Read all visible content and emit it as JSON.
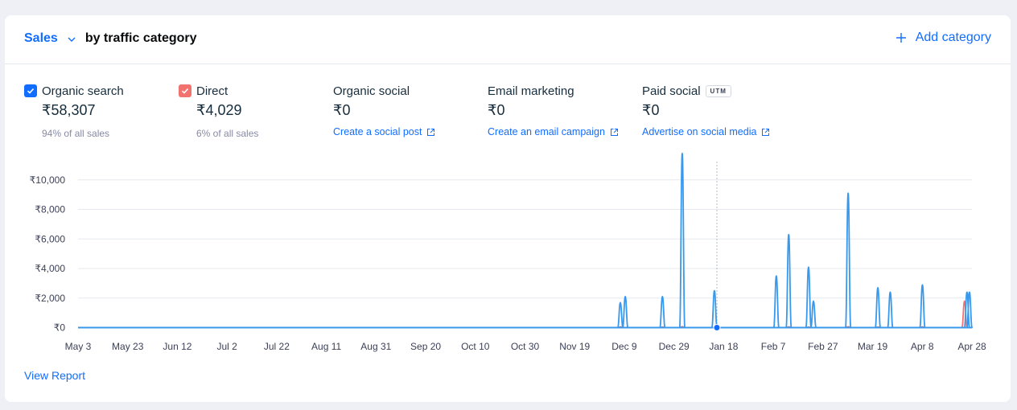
{
  "header": {
    "metric": "Sales",
    "title_rest": "by traffic category",
    "add_category": "Add category"
  },
  "categories": [
    {
      "name": "Organic search",
      "value": "₹58,307",
      "sub": "94% of all sales",
      "checked": true,
      "color": "#3899ec"
    },
    {
      "name": "Direct",
      "value": "₹4,029",
      "sub": "6% of all sales",
      "checked": true,
      "color": "#f1726f"
    },
    {
      "name": "Organic social",
      "value": "₹0",
      "link": "Create a social post"
    },
    {
      "name": "Email marketing",
      "value": "₹0",
      "link": "Create an email campaign"
    },
    {
      "name": "Paid social",
      "badge": "UTM",
      "value": "₹0",
      "link": "Advertise on social media"
    }
  ],
  "view_report": "View Report",
  "chart_data": {
    "type": "line",
    "ylim": [
      0,
      12000
    ],
    "yticks": [
      0,
      2000,
      4000,
      6000,
      8000,
      10000
    ],
    "ytick_labels": [
      "₹0",
      "₹2,000",
      "₹4,000",
      "₹6,000",
      "₹8,000",
      "₹10,000"
    ],
    "x_start": "May 3",
    "x_end": "Apr 28",
    "xtick_labels": [
      "May 3",
      "May 23",
      "Jun 12",
      "Jul 2",
      "Jul 22",
      "Aug 11",
      "Aug 31",
      "Sep 20",
      "Oct 10",
      "Oct 30",
      "Nov 19",
      "Dec 9",
      "Dec 29",
      "Jan 18",
      "Feb 7",
      "Feb 27",
      "Mar 19",
      "Apr 8",
      "Apr 28"
    ],
    "hover_date": "Jan 16",
    "series": [
      {
        "name": "Organic search",
        "color": "#3899ec",
        "points": [
          [
            "Dec 8",
            1700
          ],
          [
            "Dec 10",
            2100
          ],
          [
            "Dec 25",
            2100
          ],
          [
            "Jan 2",
            11800
          ],
          [
            "Jan 15",
            2500
          ],
          [
            "Feb 9",
            3500
          ],
          [
            "Feb 14",
            6300
          ],
          [
            "Feb 22",
            4100
          ],
          [
            "Feb 24",
            1800
          ],
          [
            "Mar 9",
            9100
          ],
          [
            "Mar 21",
            2700
          ],
          [
            "Mar 26",
            2400
          ],
          [
            "Apr 8",
            2900
          ],
          [
            "Apr 26",
            2400
          ],
          [
            "Apr 27",
            2400
          ]
        ]
      },
      {
        "name": "Direct",
        "color": "#f1726f",
        "points": [
          [
            "Dec 8",
            50
          ],
          [
            "Dec 25",
            40
          ],
          [
            "Jan 2",
            60
          ],
          [
            "Feb 14",
            50
          ],
          [
            "Feb 22",
            40
          ],
          [
            "Mar 9",
            60
          ],
          [
            "Mar 21",
            40
          ],
          [
            "Apr 8",
            50
          ],
          [
            "Apr 25",
            1800
          ]
        ]
      }
    ]
  }
}
